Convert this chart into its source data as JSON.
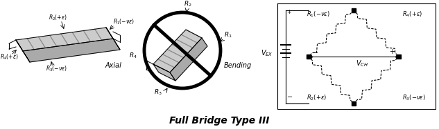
{
  "title": "Full Bridge Type III",
  "title_fontsize": 10,
  "bg_color": "#ffffff",
  "fg_color": "#000000",
  "fig_width": 6.33,
  "fig_height": 1.87,
  "lgray": "#cccccc",
  "mgray": "#aaaaaa",
  "dgray": "#888888"
}
